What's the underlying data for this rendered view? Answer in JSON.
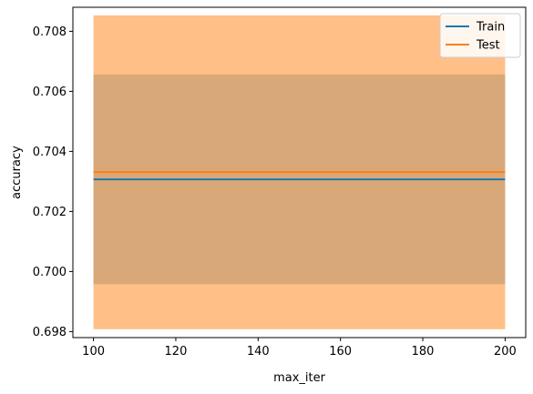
{
  "chart_data": {
    "type": "line",
    "xlabel": "max_iter",
    "ylabel": "accuracy",
    "xlim": [
      95,
      205
    ],
    "ylim": [
      0.6978,
      0.7088
    ],
    "xticks": [
      100,
      120,
      140,
      160,
      180,
      200
    ],
    "xtick_labels": [
      "100",
      "120",
      "140",
      "160",
      "180",
      "200"
    ],
    "yticks": [
      0.698,
      0.7,
      0.702,
      0.704,
      0.706,
      0.708
    ],
    "ytick_labels": [
      "0.698",
      "0.700",
      "0.702",
      "0.704",
      "0.706",
      "0.708"
    ],
    "grid": false,
    "legend_position": "top-right",
    "series": [
      {
        "name": "Train",
        "color": "#1f77b4",
        "x": [
          100,
          200
        ],
        "y": [
          0.70307,
          0.70307
        ],
        "band_lower": [
          0.69958,
          0.69958
        ],
        "band_upper": [
          0.70656,
          0.70656
        ],
        "band_color": "#1f77b4",
        "band_alpha": 0.35
      },
      {
        "name": "Test",
        "color": "#ff7f0e",
        "x": [
          100,
          200
        ],
        "y": [
          0.70331,
          0.70331
        ],
        "band_lower": [
          0.69808,
          0.69808
        ],
        "band_upper": [
          0.70853,
          0.70853
        ],
        "band_color": "#ff7f0e",
        "band_alpha": 0.5
      }
    ]
  }
}
